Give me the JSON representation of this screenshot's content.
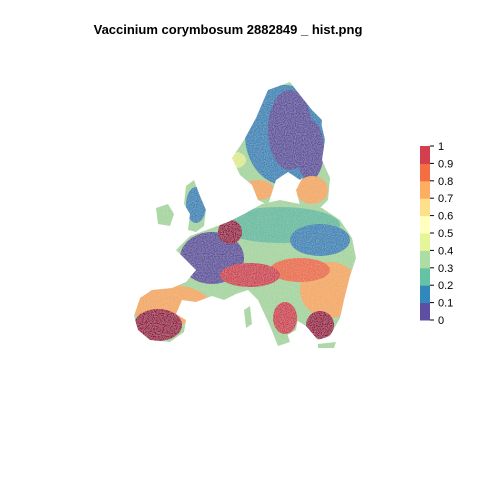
{
  "title": "Vaccinium corymbosum 2882849 _ hist.png",
  "legend": {
    "ticks": [
      "0",
      "0.1",
      "0.2",
      "0.3",
      "0.4",
      "0.5",
      "0.6",
      "0.7",
      "0.8",
      "0.9",
      "1"
    ],
    "colors": [
      "#5E4FA2",
      "#3288BD",
      "#66C2A5",
      "#ABDDA4",
      "#E6F598",
      "#FFFFBF",
      "#FEE08B",
      "#FDAE61",
      "#F46D43",
      "#D53E4F",
      "#9E0142"
    ]
  },
  "palette": {
    "low": "#5E4FA2",
    "mid_low": "#3288BD",
    "mid": "#ABDDA4",
    "mid_high": "#FDAE61",
    "high": "#9E0142"
  }
}
